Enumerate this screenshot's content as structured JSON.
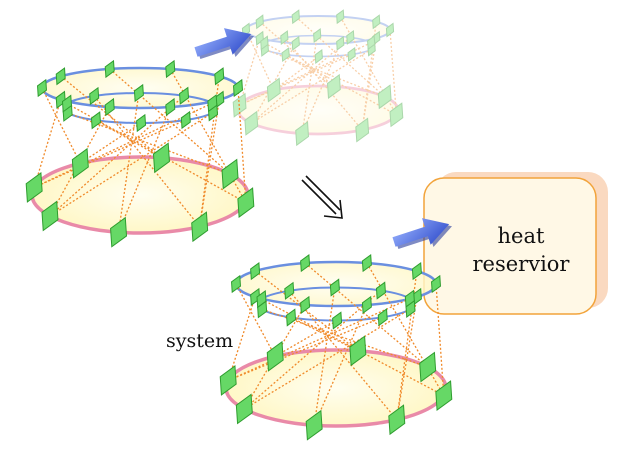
{
  "labels": {
    "system": "system",
    "heat_reservoir_line1": "heat",
    "heat_reservoir_line2": "reservior"
  },
  "colors": {
    "background": "#ffffff",
    "diamond_fill": "#66d866",
    "diamond_edge": "#2f9d2f",
    "top_ring": "#6a8fe0",
    "bottom_ring": "#e98aa8",
    "ring_fill": "#fffbd2",
    "spring_lines": "#f08a2a",
    "arrow_blue": "#4468e2",
    "reservoir_fill": "#fff8e6",
    "reservoir_border": "#f2a33a",
    "reservoir_shadow": "#fad9c0"
  },
  "icons": [
    "shadow-arrow-icon",
    "double-arrow-icon"
  ]
}
